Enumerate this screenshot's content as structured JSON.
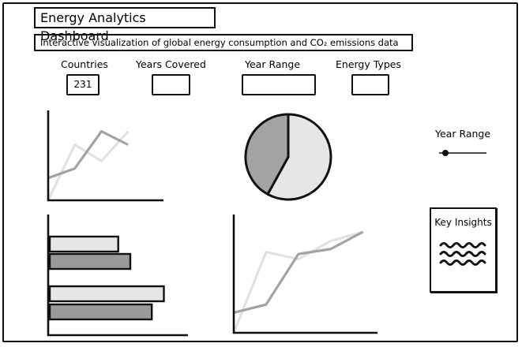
{
  "header": {
    "title": "Energy Analytics Dashboard",
    "subtitle": "Interactive visualization of global energy consumption and CO₂ emissions data"
  },
  "stats": [
    {
      "label": "Countries",
      "value": "231"
    },
    {
      "label": "Years Covered",
      "value": ""
    },
    {
      "label": "Year Range",
      "value": ""
    },
    {
      "label": "Energy Types",
      "value": ""
    }
  ],
  "sidebar": {
    "year_range_label": "Year Range",
    "year_range_slider_value": 0.1,
    "insights_title": "Key Insights"
  },
  "colors": {
    "light_series": "#e2e2e2",
    "dark_series": "#a3a3a3",
    "bar_dark": "#9a9a9a",
    "bar_light": "#e6e6e6",
    "outline": "#111111"
  },
  "chart_data": [
    {
      "type": "line",
      "x": [
        0,
        1,
        2,
        3,
        4
      ],
      "series": [
        {
          "values": [
            0,
            75,
            53,
            93,
            null
          ]
        },
        {
          "values": [
            30,
            43,
            93,
            75,
            null
          ]
        }
      ],
      "xlim": [
        0,
        4.3
      ],
      "ylim": [
        0,
        100
      ]
    },
    {
      "type": "pie",
      "values": [
        58,
        42
      ]
    },
    {
      "type": "bar",
      "orientation": "horizontal",
      "values": [
        51,
        60,
        85,
        76
      ],
      "xlim": [
        0,
        100
      ]
    },
    {
      "type": "line",
      "x": [
        0,
        1,
        2,
        3,
        4
      ],
      "series": [
        {
          "values": [
            0,
            80,
            73,
            91,
            100
          ]
        },
        {
          "values": [
            20,
            28,
            78,
            83,
            100
          ]
        }
      ],
      "xlim": [
        0,
        4.3
      ],
      "ylim": [
        0,
        100
      ]
    }
  ]
}
